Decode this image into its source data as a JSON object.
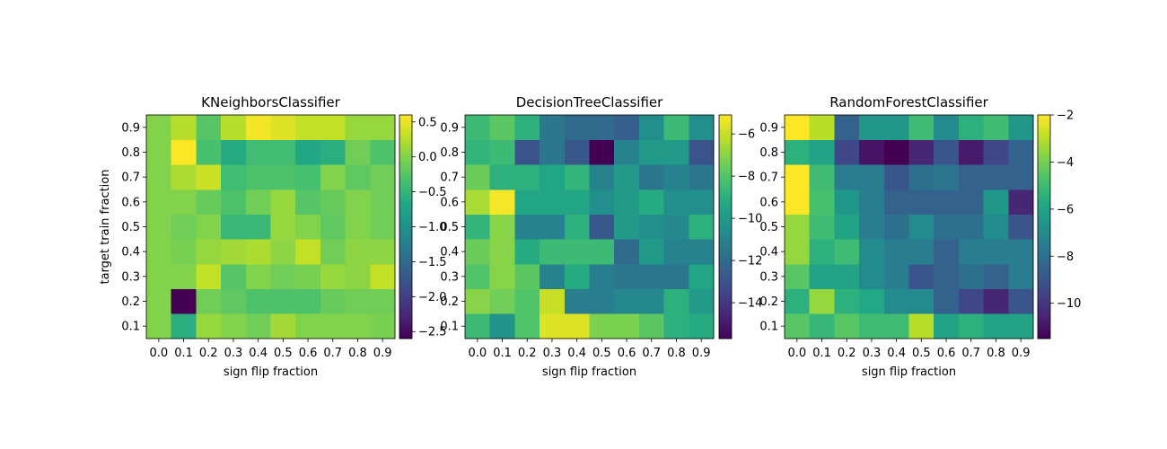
{
  "chart_data": [
    {
      "type": "heatmap",
      "title": "KNeighborsClassifier",
      "xlabel": "sign flip fraction",
      "ylabel": "target train fraction",
      "x": [
        0.0,
        0.1,
        0.2,
        0.3,
        0.4,
        0.5,
        0.6,
        0.7,
        0.8,
        0.9
      ],
      "y": [
        0.1,
        0.2,
        0.3,
        0.4,
        0.5,
        0.6,
        0.7,
        0.8,
        0.9
      ],
      "x_ticklabels": [
        "0.0",
        "0.1",
        "0.2",
        "0.3",
        "0.4",
        "0.5",
        "0.6",
        "0.7",
        "0.8",
        "0.9"
      ],
      "y_ticklabels": [
        "0.1",
        "0.2",
        "0.3",
        "0.4",
        "0.5",
        "0.6",
        "0.7",
        "0.8",
        "0.9"
      ],
      "colormap": "viridis",
      "vmin": -2.6,
      "vmax": 0.6,
      "colorbar_ticks": [
        0.5,
        0.0,
        -0.5,
        -1.0,
        -1.5,
        -2.0,
        -2.5
      ],
      "colorbar_ticklabels": [
        "0.5",
        "0.0",
        "−0.5",
        "−1.0",
        "−1.5",
        "−2.0",
        "−2.5"
      ],
      "values": [
        [
          0.0,
          -0.6,
          0.1,
          0.0,
          -0.1,
          0.15,
          0.0,
          0.0,
          0.0,
          -0.05
        ],
        [
          0.0,
          -2.6,
          -0.1,
          -0.2,
          -0.3,
          -0.3,
          -0.3,
          -0.15,
          -0.1,
          -0.1
        ],
        [
          0.0,
          0.0,
          0.3,
          -0.25,
          0.0,
          -0.1,
          -0.05,
          0.1,
          0.05,
          0.3
        ],
        [
          0.0,
          -0.05,
          0.1,
          0.15,
          0.2,
          0.05,
          0.3,
          -0.1,
          0.05,
          0.05
        ],
        [
          0.0,
          -0.1,
          0.0,
          -0.45,
          -0.45,
          0.1,
          0.0,
          -0.2,
          0.0,
          -0.1
        ],
        [
          0.0,
          0.0,
          -0.15,
          -0.3,
          -0.1,
          0.1,
          -0.25,
          -0.15,
          0.0,
          -0.1
        ],
        [
          0.0,
          0.2,
          0.35,
          -0.4,
          -0.3,
          -0.3,
          -0.35,
          0.0,
          -0.2,
          -0.1
        ],
        [
          0.0,
          0.6,
          -0.35,
          -0.65,
          -0.4,
          -0.4,
          -0.7,
          -0.6,
          -0.1,
          -0.3
        ],
        [
          0.0,
          0.25,
          -0.25,
          0.25,
          0.55,
          0.45,
          0.3,
          0.3,
          0.1,
          0.1
        ]
      ]
    },
    {
      "type": "heatmap",
      "title": "DecisionTreeClassifier",
      "xlabel": "sign flip fraction",
      "ylabel": "",
      "x": [
        0.0,
        0.1,
        0.2,
        0.3,
        0.4,
        0.5,
        0.6,
        0.7,
        0.8,
        0.9
      ],
      "y": [
        0.1,
        0.2,
        0.3,
        0.4,
        0.5,
        0.6,
        0.7,
        0.8,
        0.9
      ],
      "x_ticklabels": [
        "0.0",
        "0.1",
        "0.2",
        "0.3",
        "0.4",
        "0.5",
        "0.6",
        "0.7",
        "0.8",
        "0.9"
      ],
      "y_ticklabels": [
        "0.1",
        "0.2",
        "0.3",
        "0.4",
        "0.5",
        "0.6",
        "0.7",
        "0.8",
        "0.9"
      ],
      "colormap": "viridis",
      "vmin": -15.7,
      "vmax": -5.1,
      "colorbar_ticks": [
        -6,
        -8,
        -10,
        -12,
        -14
      ],
      "colorbar_ticklabels": [
        "−6",
        "−8",
        "−10",
        "−12",
        "−14"
      ],
      "values": [
        [
          -8.5,
          -10.2,
          -8.0,
          -5.6,
          -5.6,
          -7.2,
          -7.2,
          -7.8,
          -9.0,
          -9.2
        ],
        [
          -7.0,
          -7.4,
          -8.0,
          -6.0,
          -11.2,
          -11.2,
          -10.8,
          -10.8,
          -9.0,
          -10.0
        ],
        [
          -8.0,
          -7.0,
          -7.8,
          -11.0,
          -9.2,
          -11.2,
          -11.5,
          -11.5,
          -11.5,
          -9.5
        ],
        [
          -7.5,
          -7.0,
          -9.2,
          -8.5,
          -8.5,
          -8.5,
          -12.0,
          -10.0,
          -11.0,
          -11.0
        ],
        [
          -8.8,
          -7.0,
          -11.0,
          -11.0,
          -9.0,
          -12.8,
          -10.0,
          -10.5,
          -10.8,
          -9.0
        ],
        [
          -6.5,
          -5.2,
          -9.5,
          -9.5,
          -9.5,
          -10.5,
          -10.0,
          -9.2,
          -10.5,
          -10.5
        ],
        [
          -7.5,
          -9.0,
          -9.0,
          -9.5,
          -8.8,
          -11.0,
          -10.0,
          -11.5,
          -11.0,
          -11.5
        ],
        [
          -8.8,
          -8.5,
          -13.0,
          -11.5,
          -12.8,
          -15.7,
          -11.0,
          -10.0,
          -10.0,
          -13.0
        ],
        [
          -8.5,
          -7.8,
          -9.0,
          -11.5,
          -12.0,
          -12.0,
          -12.5,
          -10.5,
          -8.5,
          -10.5
        ]
      ]
    },
    {
      "type": "heatmap",
      "title": "RandomForestClassifier",
      "xlabel": "sign flip fraction",
      "ylabel": "",
      "x": [
        0.0,
        0.1,
        0.2,
        0.3,
        0.4,
        0.5,
        0.6,
        0.7,
        0.8,
        0.9
      ],
      "y": [
        0.1,
        0.2,
        0.3,
        0.4,
        0.5,
        0.6,
        0.7,
        0.8,
        0.9
      ],
      "x_ticklabels": [
        "0.0",
        "0.1",
        "0.2",
        "0.3",
        "0.4",
        "0.5",
        "0.6",
        "0.7",
        "0.8",
        "0.9"
      ],
      "y_ticklabels": [
        "0.1",
        "0.2",
        "0.3",
        "0.4",
        "0.5",
        "0.6",
        "0.7",
        "0.8",
        "0.9"
      ],
      "colormap": "viridis",
      "vmin": -11.5,
      "vmax": -2.0,
      "colorbar_ticks": [
        -2,
        -4,
        -6,
        -8,
        -10
      ],
      "colorbar_ticklabels": [
        "−2",
        "−4",
        "−6",
        "−8",
        "−10"
      ],
      "values": [
        [
          -4.5,
          -5.2,
          -4.5,
          -5.0,
          -5.0,
          -3.0,
          -6.0,
          -5.5,
          -6.0,
          -6.0
        ],
        [
          -5.5,
          -3.5,
          -5.5,
          -5.8,
          -7.0,
          -7.0,
          -8.5,
          -9.5,
          -10.5,
          -9.0
        ],
        [
          -4.5,
          -6.0,
          -6.0,
          -7.0,
          -7.5,
          -9.0,
          -8.5,
          -8.0,
          -8.5,
          -7.5
        ],
        [
          -3.5,
          -5.5,
          -5.0,
          -7.0,
          -7.5,
          -7.5,
          -8.5,
          -7.5,
          -7.5,
          -7.5
        ],
        [
          -3.5,
          -5.0,
          -6.0,
          -7.5,
          -8.0,
          -7.0,
          -8.0,
          -8.0,
          -7.0,
          -9.0
        ],
        [
          -2.0,
          -4.8,
          -6.5,
          -7.5,
          -8.5,
          -8.5,
          -8.5,
          -8.5,
          -6.5,
          -10.5
        ],
        [
          -2.0,
          -5.0,
          -7.5,
          -7.5,
          -9.0,
          -8.0,
          -7.8,
          -8.5,
          -8.5,
          -8.5
        ],
        [
          -5.5,
          -6.0,
          -9.5,
          -11.0,
          -11.5,
          -10.5,
          -9.0,
          -10.8,
          -9.5,
          -8.5
        ],
        [
          -2.0,
          -3.0,
          -8.5,
          -6.5,
          -6.5,
          -5.0,
          -7.0,
          -5.5,
          -5.0,
          -6.5
        ]
      ]
    }
  ]
}
